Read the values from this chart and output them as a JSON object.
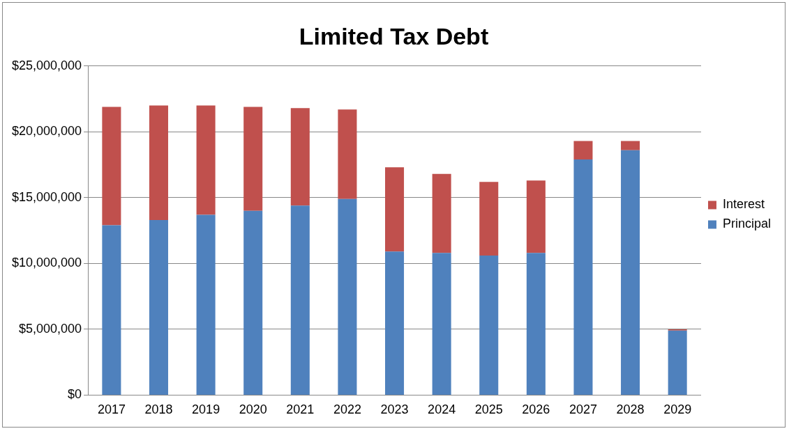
{
  "chart_data": {
    "type": "bar",
    "title": "Limited Tax Debt",
    "stacked": true,
    "categories": [
      "2017",
      "2018",
      "2019",
      "2020",
      "2021",
      "2022",
      "2023",
      "2024",
      "2025",
      "2026",
      "2027",
      "2028",
      "2029"
    ],
    "series": [
      {
        "name": "Principal",
        "color": "#4f81bd",
        "values": [
          12900000,
          13300000,
          13700000,
          14000000,
          14400000,
          14900000,
          10900000,
          10800000,
          10600000,
          10800000,
          17900000,
          18600000,
          4900000
        ]
      },
      {
        "name": "Interest",
        "color": "#c0504d",
        "values": [
          9000000,
          8700000,
          8300000,
          7900000,
          7400000,
          6800000,
          6400000,
          6000000,
          5600000,
          5500000,
          1400000,
          700000,
          100000
        ]
      }
    ],
    "ylim": [
      0,
      25000000
    ],
    "yticks": [
      {
        "value": 0,
        "label": "$0"
      },
      {
        "value": 5000000,
        "label": "$5,000,000"
      },
      {
        "value": 10000000,
        "label": "$10,000,000"
      },
      {
        "value": 15000000,
        "label": "$15,000,000"
      },
      {
        "value": 20000000,
        "label": "$20,000,000"
      },
      {
        "value": 25000000,
        "label": "$25,000,000"
      }
    ],
    "grid": "y",
    "legend": "right"
  }
}
